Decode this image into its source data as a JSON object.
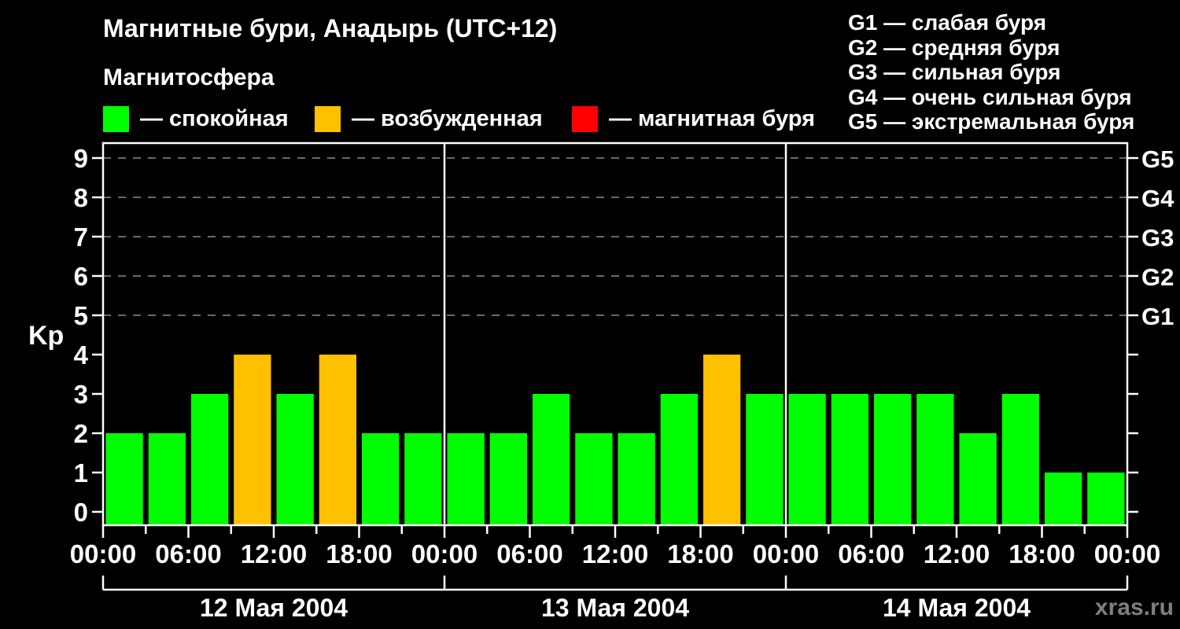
{
  "title": "Магнитные бури, Анадырь (UTC+12)",
  "watermark": "xras.ru",
  "legend": {
    "title": "Магнитосфера",
    "items": [
      {
        "name": "quiet",
        "label": "— спокойная",
        "color": "#00ff00"
      },
      {
        "name": "disturbed",
        "label": "— возбужденная",
        "color": "#ffc000"
      },
      {
        "name": "storm",
        "label": "— магнитная буря",
        "color": "#ff0000"
      }
    ]
  },
  "storm_legend": {
    "items": [
      "G1 — слабая буря",
      "G2 — средняя буря",
      "G3 — сильная буря",
      "G4 — очень сильная буря",
      "G5 — экстремальная буря"
    ]
  },
  "chart_data": {
    "type": "bar",
    "title": "Магнитные бури, Анадырь (UTC+12)",
    "ylabel": "Kp",
    "ylim": [
      0,
      9
    ],
    "yticks": [
      0,
      1,
      2,
      3,
      4,
      5,
      6,
      7,
      8,
      9
    ],
    "gridlines_at": [
      5,
      6,
      7,
      8,
      9
    ],
    "grid_color": "#8c8c8c",
    "right_axis_labels": [
      {
        "kp": 5,
        "label": "G1"
      },
      {
        "kp": 6,
        "label": "G2"
      },
      {
        "kp": 7,
        "label": "G3"
      },
      {
        "kp": 8,
        "label": "G4"
      },
      {
        "kp": 9,
        "label": "G5"
      }
    ],
    "x_tick_labels": [
      "00:00",
      "06:00",
      "12:00",
      "18:00",
      "00:00",
      "06:00",
      "12:00",
      "18:00",
      "00:00",
      "06:00",
      "12:00",
      "18:00",
      "00:00"
    ],
    "bar_hours": 3,
    "days": [
      {
        "date": "12 Мая 2004",
        "values": [
          2,
          2,
          3,
          4,
          3,
          4,
          2,
          2
        ]
      },
      {
        "date": "13 Мая 2004",
        "values": [
          2,
          2,
          3,
          2,
          2,
          3,
          4,
          3
        ]
      },
      {
        "date": "14 Мая 2004",
        "values": [
          3,
          3,
          3,
          3,
          2,
          3,
          1,
          1
        ]
      }
    ],
    "colors": {
      "quiet": "#00ff00",
      "disturbed": "#ffc000",
      "storm": "#ff0000"
    },
    "color_rule": "Kp<=3 quiet (green), Kp=4 disturbed (orange), Kp>=5 storm (red)"
  }
}
